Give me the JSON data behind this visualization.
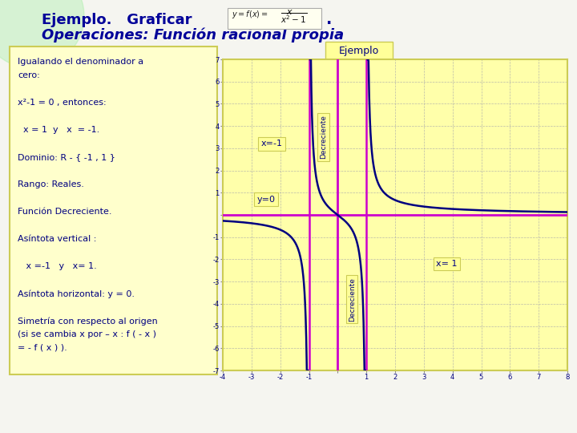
{
  "bg_color": "#f5f5f0",
  "title1": "Ejemplo.   Graficar",
  "title2": "Operaciones: Función racional propia",
  "chart_title": "Ejemplo",
  "left_box_color": "#ffffcc",
  "chart_box_color": "#ffffaa",
  "left_text_lines": [
    "Igualando el denominador a",
    "cero:",
    "",
    "x²-1 = 0 , entonces:",
    "",
    "  x = 1  y   x  = -1.",
    "",
    "Dominio: R - { -1 , 1 }",
    "",
    "Rango: Reales.",
    "",
    "Función Decreciente.",
    "",
    "Asíntota vertical :",
    "",
    "   x =-1   y   x= 1.",
    "",
    "Asíntota horizontal: y = 0.",
    "",
    "Simetría con respecto al origen",
    "(si se cambia x por – x : f ( - x )",
    "= - f ( x ) )."
  ],
  "curve_color": "#000080",
  "asymptote_color": "#cc00cc",
  "axis_color": "#cc00cc",
  "grid_color": "#aaaaaa",
  "text_color": "#000080",
  "label_box_color": "#ffff99",
  "xlim": [
    -4,
    8
  ],
  "ylim": [
    -7,
    7
  ],
  "title_color": "#000099",
  "decor_circle_color": "#90ee90"
}
